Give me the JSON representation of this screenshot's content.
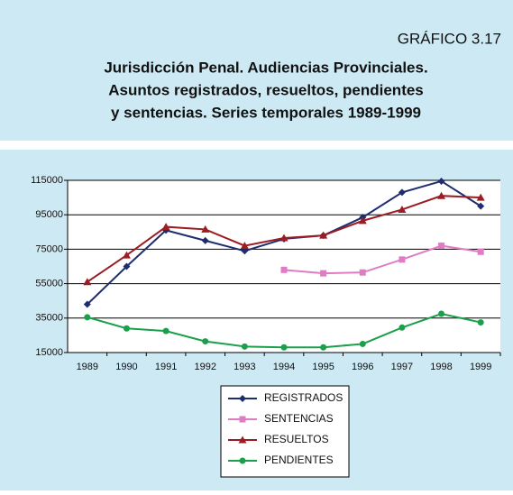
{
  "chart_data": {
    "type": "line",
    "label": "GRÁFICO 3.17",
    "title": [
      "Jurisdicción Penal. Audiencias Provinciales.",
      "Asuntos registrados, resueltos, pendientes",
      "y sentencias. Series temporales 1989-1999"
    ],
    "categories": [
      "1989",
      "1990",
      "1991",
      "1992",
      "1993",
      "1994",
      "1995",
      "1996",
      "1997",
      "1998",
      "1999"
    ],
    "series": [
      {
        "name": "REGISTRADOS",
        "color": "#1f2d6e",
        "marker": "diamond",
        "values": [
          43000,
          65000,
          86000,
          80000,
          74000,
          81000,
          83000,
          93500,
          108000,
          114500,
          100000
        ]
      },
      {
        "name": "SENTENCIAS",
        "color": "#e07cc4",
        "marker": "square",
        "values": [
          null,
          null,
          null,
          null,
          null,
          63000,
          61000,
          61500,
          69000,
          77000,
          73500
        ]
      },
      {
        "name": "RESUELTOS",
        "color": "#9b1c22",
        "marker": "triangle",
        "values": [
          56000,
          71500,
          88000,
          86500,
          77000,
          81500,
          83000,
          91500,
          98000,
          106000,
          105000
        ]
      },
      {
        "name": "PENDIENTES",
        "color": "#1aa04a",
        "marker": "circle",
        "values": [
          35500,
          29000,
          27500,
          21500,
          18500,
          18000,
          18000,
          20000,
          29500,
          37500,
          32500
        ]
      }
    ],
    "ylim": [
      15000,
      115000
    ],
    "yticks": [
      15000,
      35000,
      55000,
      75000,
      95000,
      115000
    ],
    "grid": true,
    "legend": "bottom"
  }
}
